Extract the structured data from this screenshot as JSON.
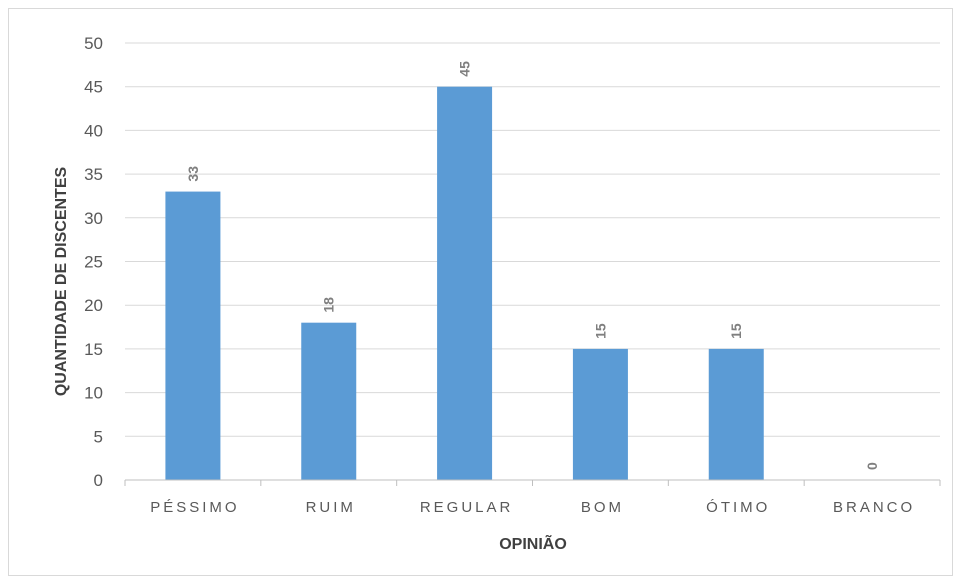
{
  "chart_data": {
    "type": "bar",
    "title": "",
    "xlabel": "OPINIÃO",
    "ylabel": "QUANTIDADE DE DISCENTES",
    "categories": [
      "PÉSSIMO",
      "RUIM",
      "REGULAR",
      "BOM",
      "ÓTIMO",
      "BRANCO"
    ],
    "values": [
      33,
      18,
      45,
      15,
      15,
      0
    ],
    "ylim": [
      0,
      50
    ],
    "yticks": [
      0,
      5,
      10,
      15,
      20,
      25,
      30,
      35,
      40,
      45,
      50
    ],
    "grid": true,
    "legend": "none",
    "bar_color": "#5b9bd5",
    "data_labels": true
  }
}
